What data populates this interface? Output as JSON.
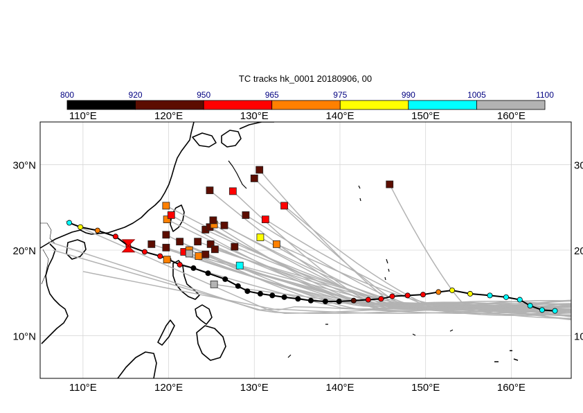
{
  "title": "TC tracks  hk_0001 20180906, 00",
  "colorbar": {
    "ticks": [
      "800",
      "920",
      "950",
      "965",
      "975",
      "990",
      "1005",
      "1100"
    ],
    "colors": [
      "#000000",
      "#5c0d00",
      "#ff0000",
      "#ff8000",
      "#ffff00",
      "#00ffff",
      "#b3b3b3"
    ],
    "tick_color": "#000080"
  },
  "map": {
    "lon_range": [
      105,
      167
    ],
    "lat_range": [
      5,
      35
    ],
    "lon_labels": [
      "110°E",
      "120°E",
      "130°E",
      "140°E",
      "150°E",
      "160°E"
    ],
    "lon_values": [
      110,
      120,
      130,
      140,
      150,
      160
    ],
    "lat_labels": [
      "30°N",
      "20°N",
      "10°N"
    ],
    "lat_values": [
      30,
      20,
      10
    ],
    "right_lat_labels": [
      "30",
      "20",
      "10"
    ],
    "grid": true,
    "coastline_color": "#000000",
    "member_track_color": "#b3b3b3",
    "main_track_color": "#000000"
  },
  "current_position": {
    "lon": 115.3,
    "lat": 20.5,
    "marker": "hourglass",
    "color": "#ff0000"
  },
  "main_track": [
    {
      "lon": 108.4,
      "lat": 23.2,
      "cat": 5
    },
    {
      "lon": 109.7,
      "lat": 22.7,
      "cat": 4
    },
    {
      "lon": 111.7,
      "lat": 22.3,
      "cat": 3
    },
    {
      "lon": 113.8,
      "lat": 21.6,
      "cat": 2
    },
    {
      "lon": 115.3,
      "lat": 20.5,
      "cat": 2
    },
    {
      "lon": 117.2,
      "lat": 19.8,
      "cat": 2
    },
    {
      "lon": 119.0,
      "lat": 19.3,
      "cat": 2
    },
    {
      "lon": 120.0,
      "lat": 18.9,
      "cat": 2
    },
    {
      "lon": 121.3,
      "lat": 18.3,
      "cat": 2
    },
    {
      "lon": 122.9,
      "lat": 17.9,
      "cat": 0
    },
    {
      "lon": 124.6,
      "lat": 17.3,
      "cat": 0
    },
    {
      "lon": 126.6,
      "lat": 16.6,
      "cat": 0
    },
    {
      "lon": 128.1,
      "lat": 15.8,
      "cat": 0
    },
    {
      "lon": 129.2,
      "lat": 15.2,
      "cat": 0
    },
    {
      "lon": 130.7,
      "lat": 14.9,
      "cat": 0
    },
    {
      "lon": 132.1,
      "lat": 14.7,
      "cat": 0
    },
    {
      "lon": 133.5,
      "lat": 14.5,
      "cat": 0
    },
    {
      "lon": 135.1,
      "lat": 14.3,
      "cat": 0
    },
    {
      "lon": 136.6,
      "lat": 14.1,
      "cat": 0
    },
    {
      "lon": 138.3,
      "lat": 14.0,
      "cat": 0
    },
    {
      "lon": 139.9,
      "lat": 14.0,
      "cat": 0
    },
    {
      "lon": 141.6,
      "lat": 14.1,
      "cat": 1
    },
    {
      "lon": 143.3,
      "lat": 14.2,
      "cat": 2
    },
    {
      "lon": 144.8,
      "lat": 14.3,
      "cat": 2
    },
    {
      "lon": 146.1,
      "lat": 14.6,
      "cat": 2
    },
    {
      "lon": 147.9,
      "lat": 14.7,
      "cat": 2
    },
    {
      "lon": 149.7,
      "lat": 14.8,
      "cat": 2
    },
    {
      "lon": 151.5,
      "lat": 15.1,
      "cat": 3
    },
    {
      "lon": 153.1,
      "lat": 15.3,
      "cat": 4
    },
    {
      "lon": 155.2,
      "lat": 14.9,
      "cat": 4
    },
    {
      "lon": 157.5,
      "lat": 14.7,
      "cat": 5
    },
    {
      "lon": 159.4,
      "lat": 14.5,
      "cat": 5
    },
    {
      "lon": 161.0,
      "lat": 14.2,
      "cat": 5
    },
    {
      "lon": 162.2,
      "lat": 13.5,
      "cat": 5
    },
    {
      "lon": 163.6,
      "lat": 13.0,
      "cat": 5
    },
    {
      "lon": 165.1,
      "lat": 12.9,
      "cat": 5
    }
  ],
  "endpoints": [
    {
      "lon": 119.7,
      "lat": 25.2,
      "cat": 3
    },
    {
      "lon": 119.8,
      "lat": 23.6,
      "cat": 3
    },
    {
      "lon": 120.3,
      "lat": 24.1,
      "cat": 2
    },
    {
      "lon": 119.7,
      "lat": 21.8,
      "cat": 1
    },
    {
      "lon": 118.0,
      "lat": 20.7,
      "cat": 1
    },
    {
      "lon": 119.7,
      "lat": 20.3,
      "cat": 1
    },
    {
      "lon": 121.3,
      "lat": 21.0,
      "cat": 1
    },
    {
      "lon": 121.8,
      "lat": 19.8,
      "cat": 2
    },
    {
      "lon": 122.4,
      "lat": 20.0,
      "cat": 3
    },
    {
      "lon": 122.4,
      "lat": 19.6,
      "cat": 6
    },
    {
      "lon": 123.4,
      "lat": 21.0,
      "cat": 1
    },
    {
      "lon": 123.5,
      "lat": 19.3,
      "cat": 3
    },
    {
      "lon": 124.3,
      "lat": 19.5,
      "cat": 1
    },
    {
      "lon": 119.8,
      "lat": 18.9,
      "cat": 3
    },
    {
      "lon": 124.3,
      "lat": 22.4,
      "cat": 1
    },
    {
      "lon": 124.8,
      "lat": 22.7,
      "cat": 1
    },
    {
      "lon": 125.3,
      "lat": 23.0,
      "cat": 3
    },
    {
      "lon": 125.2,
      "lat": 23.5,
      "cat": 1
    },
    {
      "lon": 126.5,
      "lat": 22.9,
      "cat": 1
    },
    {
      "lon": 124.9,
      "lat": 20.7,
      "cat": 1
    },
    {
      "lon": 125.4,
      "lat": 20.1,
      "cat": 1
    },
    {
      "lon": 127.7,
      "lat": 20.4,
      "cat": 1
    },
    {
      "lon": 124.8,
      "lat": 27.0,
      "cat": 1
    },
    {
      "lon": 127.5,
      "lat": 26.9,
      "cat": 2
    },
    {
      "lon": 129.0,
      "lat": 24.1,
      "cat": 1
    },
    {
      "lon": 130.0,
      "lat": 28.4,
      "cat": 1
    },
    {
      "lon": 130.6,
      "lat": 29.4,
      "cat": 1
    },
    {
      "lon": 131.3,
      "lat": 23.6,
      "cat": 2
    },
    {
      "lon": 133.5,
      "lat": 25.2,
      "cat": 2
    },
    {
      "lon": 130.7,
      "lat": 21.5,
      "cat": 4
    },
    {
      "lon": 132.6,
      "lat": 20.7,
      "cat": 3
    },
    {
      "lon": 128.3,
      "lat": 18.2,
      "cat": 5
    },
    {
      "lon": 125.3,
      "lat": 16.0,
      "cat": 6
    },
    {
      "lon": 145.8,
      "lat": 27.7,
      "cat": 1
    }
  ]
}
